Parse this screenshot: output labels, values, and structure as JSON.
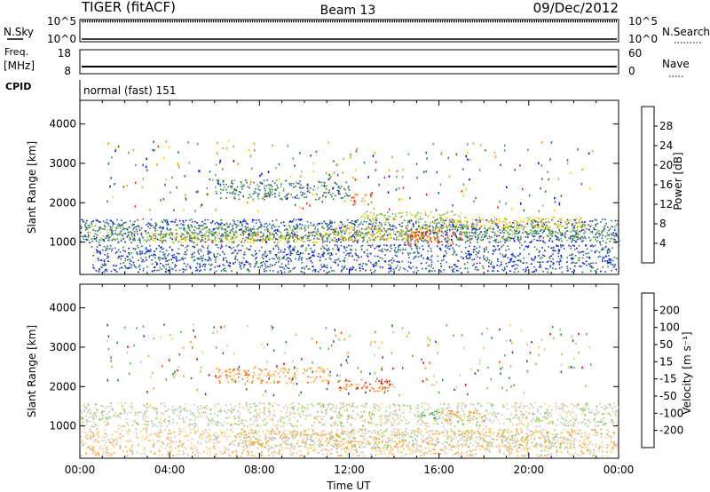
{
  "header": {
    "radar": "TIGER (fitACF)",
    "beam": "Beam 13",
    "date": "09/Dec/2012"
  },
  "noise_panel": {
    "left_label": "N.Sky",
    "right_label": "N.Search",
    "left_ticks": [
      "10^5",
      "10^0"
    ],
    "right_ticks": [
      "10^5",
      "10^0"
    ]
  },
  "freq_panel": {
    "left_label_1": "Freq.",
    "left_label_2": "[MHz]",
    "right_label": "Nave",
    "left_ticks": [
      "18",
      "8"
    ],
    "right_ticks": [
      "60",
      "0"
    ]
  },
  "cpid_panel": {
    "label": "CPID",
    "value": "normal (fast) 151"
  },
  "x_axis": {
    "label": "Time UT",
    "ticks": [
      "00:00",
      "04:00",
      "08:00",
      "12:00",
      "16:00",
      "20:00",
      "00:00"
    ]
  },
  "y_axis": {
    "label": "Slant Range [km]",
    "ticks": [
      "1000",
      "2000",
      "3000",
      "4000"
    ]
  },
  "power_colorbar": {
    "label": "Power [dB]",
    "ticks": [
      "4",
      "8",
      "12",
      "16",
      "20",
      "24",
      "28"
    ],
    "colors": [
      "#0000ff",
      "#1f55ae",
      "#2c7a3c",
      "#5e9c5e",
      "#9acd32",
      "#ffd700",
      "#ff8c00",
      "#ff2000"
    ]
  },
  "velocity_colorbar": {
    "label": "Velocity [m s⁻¹]",
    "ticks": [
      "200",
      "100",
      "50",
      "15",
      "-15",
      "-50",
      "-100",
      "-200"
    ],
    "colors": [
      "#1f3fbf",
      "#2e7d32",
      "#49b649",
      "#7fd04a",
      "#c0c0c0",
      "#ffc266",
      "#ff9a1f",
      "#ff5a00",
      "#e00000"
    ]
  },
  "chart_data": [
    {
      "type": "heatmap",
      "name": "Power",
      "xlabel": "Time UT",
      "ylabel": "Slant Range [km]",
      "xlim": [
        0,
        24
      ],
      "ylim": [
        180,
        4600
      ],
      "bands": [
        {
          "t0": 0.0,
          "t1": 24.0,
          "r0": 1000,
          "r1": 1600,
          "level": 1
        },
        {
          "t0": 0.0,
          "t1": 24.0,
          "r0": 1050,
          "r1": 1450,
          "level": 3
        },
        {
          "t0": 3.0,
          "t1": 11.0,
          "r0": 1000,
          "r1": 1250,
          "level": 5
        },
        {
          "t0": 11.0,
          "t1": 16.0,
          "r0": 1050,
          "r1": 1400,
          "level": 5
        },
        {
          "t0": 14.5,
          "t1": 17.0,
          "r0": 950,
          "r1": 1300,
          "level": 7
        },
        {
          "t0": 16.0,
          "t1": 22.5,
          "r0": 1350,
          "r1": 1650,
          "level": 5
        },
        {
          "t0": 12.0,
          "t1": 13.0,
          "r0": 1950,
          "r1": 2250,
          "level": 6
        },
        {
          "t0": 6.0,
          "t1": 12.0,
          "r0": 2100,
          "r1": 2600,
          "level": 2
        },
        {
          "t0": 12.5,
          "t1": 17.0,
          "r0": 1500,
          "r1": 1800,
          "level": 4
        },
        {
          "t0": 0.5,
          "t1": 24.0,
          "r0": 250,
          "r1": 950,
          "level": 1
        }
      ]
    },
    {
      "type": "heatmap",
      "name": "Velocity",
      "xlabel": "Time UT",
      "ylabel": "Slant Range [km]",
      "xlim": [
        0,
        24
      ],
      "ylim": [
        180,
        4600
      ],
      "bands": [
        {
          "t0": 0.0,
          "t1": 24.0,
          "r0": 1000,
          "r1": 1600,
          "level": 4
        },
        {
          "t0": 7.0,
          "t1": 22.0,
          "r0": 450,
          "r1": 900,
          "level": 4
        },
        {
          "t0": 15.0,
          "t1": 16.0,
          "r0": 1150,
          "r1": 1400,
          "level": 2
        },
        {
          "t0": 16.0,
          "t1": 18.0,
          "r0": 1150,
          "r1": 1400,
          "level": 6
        },
        {
          "t0": 11.5,
          "t1": 14.0,
          "r0": 1900,
          "r1": 2200,
          "level": 7
        },
        {
          "t0": 6.0,
          "t1": 11.0,
          "r0": 2100,
          "r1": 2500,
          "level": 6
        },
        {
          "t0": 0.0,
          "t1": 24.0,
          "r0": 250,
          "r1": 950,
          "level": 5
        }
      ]
    }
  ]
}
